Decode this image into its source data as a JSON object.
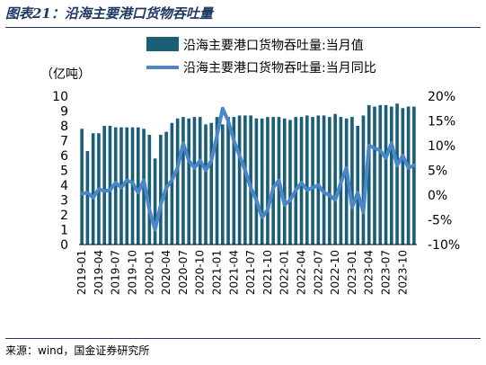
{
  "header": {
    "title": "图表21：沿海主要港口货物吞吐量"
  },
  "footer": {
    "source": "来源：wind，国金证券研究所"
  },
  "chart_data": {
    "type": "bar",
    "y_left_unit": "（亿吨）",
    "y_left_lim": [
      0,
      10
    ],
    "y_left_ticks": [
      "0",
      "1",
      "2",
      "3",
      "4",
      "5",
      "6",
      "7",
      "8",
      "9",
      "10"
    ],
    "y_right_lim": [
      -10,
      20
    ],
    "y_right_ticks": [
      "-10%",
      "-5%",
      "0%",
      "5%",
      "10%",
      "15%",
      "20%"
    ],
    "x_tick_labels": [
      "2019-01",
      "2019-04",
      "2019-07",
      "2019-10",
      "2020-01",
      "2020-04",
      "2020-07",
      "2020-10",
      "2021-01",
      "2021-04",
      "2021-07",
      "2021-10",
      "2022-01",
      "2022-04",
      "2022-07",
      "2022-10",
      "2023-01",
      "2023-04",
      "2023-07",
      "2023-10"
    ],
    "categories": [
      "2019-01",
      "2019-02",
      "2019-03",
      "2019-04",
      "2019-05",
      "2019-06",
      "2019-07",
      "2019-08",
      "2019-09",
      "2019-10",
      "2019-11",
      "2019-12",
      "2020-01",
      "2020-02",
      "2020-03",
      "2020-04",
      "2020-05",
      "2020-06",
      "2020-07",
      "2020-08",
      "2020-09",
      "2020-10",
      "2020-11",
      "2020-12",
      "2021-01",
      "2021-02",
      "2021-03",
      "2021-04",
      "2021-05",
      "2021-06",
      "2021-07",
      "2021-08",
      "2021-09",
      "2021-10",
      "2021-11",
      "2021-12",
      "2022-01",
      "2022-02",
      "2022-03",
      "2022-04",
      "2022-05",
      "2022-06",
      "2022-07",
      "2022-08",
      "2022-09",
      "2022-10",
      "2022-11",
      "2022-12",
      "2023-01",
      "2023-02",
      "2023-03",
      "2023-04",
      "2023-05",
      "2023-06",
      "2023-07",
      "2023-08",
      "2023-09",
      "2023-10",
      "2023-11",
      "2023-12"
    ],
    "series": [
      {
        "name": "沿海主要港口货物吞吐量:当月值",
        "axis": "left",
        "color": "#1b5e78",
        "values": [
          7.8,
          6.3,
          7.5,
          7.5,
          8.0,
          8.0,
          7.9,
          7.9,
          7.9,
          7.9,
          7.9,
          7.8,
          7.4,
          5.8,
          7.4,
          7.6,
          8.2,
          8.5,
          8.6,
          8.5,
          8.6,
          8.6,
          8.1,
          8.2,
          8.6,
          8.1,
          8.6,
          8.6,
          8.7,
          8.7,
          8.7,
          8.5,
          8.5,
          8.6,
          8.6,
          8.6,
          8.5,
          8.4,
          8.6,
          8.6,
          8.7,
          8.6,
          8.7,
          8.7,
          8.6,
          8.8,
          8.6,
          8.5,
          8.6,
          8.0,
          8.7,
          9.4,
          9.3,
          9.4,
          9.4,
          9.3,
          9.5,
          9.2,
          9.3,
          9.3
        ]
      },
      {
        "name": "沿海主要港口货物吞吐量:当月同比",
        "axis": "right",
        "color": "#4a86c8",
        "values": [
          0.3,
          0.5,
          -0.5,
          1.2,
          0.8,
          1.0,
          2.5,
          1.5,
          3.0,
          2.5,
          0.5,
          3.0,
          -3.0,
          -7.0,
          -2.0,
          1.5,
          3.0,
          5.5,
          10.5,
          7.0,
          5.5,
          7.0,
          5.0,
          7.0,
          12.0,
          17.5,
          15.0,
          11.0,
          8.0,
          5.0,
          1.5,
          -1.0,
          -4.5,
          -3.0,
          1.5,
          3.0,
          -2.0,
          -1.0,
          1.0,
          2.5,
          1.0,
          1.5,
          2.0,
          0.5,
          0.0,
          -1.0,
          2.5,
          5.5,
          -2.5,
          0.5,
          -3.5,
          10.0,
          9.5,
          9.0,
          7.5,
          10.5,
          6.0,
          8.0,
          5.5,
          6.0
        ]
      }
    ]
  }
}
